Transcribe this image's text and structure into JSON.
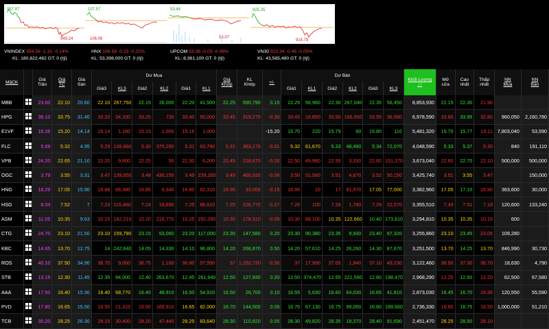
{
  "indices": [
    {
      "name": "VNINDEX",
      "value": "954.58",
      "change": "-1.31",
      "pct": "-0.14%",
      "kl": "KL: 180,822,462",
      "gt": "GT: 0 (tỷ)",
      "max_label": "957.97",
      "min_label": "949.24"
    },
    {
      "name": "HNX",
      "value": "106.58",
      "change": "-0.23",
      "pct": "-0.22%",
      "kl": "KL: 53,398,000",
      "gt": "GT: 0 (tỷ)",
      "max_label": "107.57",
      "min_label": "106.06"
    },
    {
      "name": "UPCOM",
      "value": "53.08",
      "change": "-0.03",
      "pct": "-0.06%",
      "kl": "KL: 8,361,100",
      "gt": "GT: 0 (tỷ)",
      "max_label": "53.44",
      "min_label": "53.07"
    },
    {
      "name": "VN30",
      "value": "922.34",
      "change": "-0.48",
      "pct": "-0.05%",
      "kl": "KL: 43,565,480",
      "gt": "GT: 0 (tỷ)",
      "max_label": "925.25",
      "min_label": "915.79"
    }
  ],
  "headers": {
    "symbol": "MãCK",
    "ceil": [
      "Giá",
      "Trần"
    ],
    "ref": [
      "Giá",
      "TC"
    ],
    "floor": [
      "Giá",
      "Sàn"
    ],
    "buy_group": "Dư Mua",
    "sell_group": "Dư Bán",
    "price1": "Giá1",
    "vol1": "KL1",
    "price2": "Giá2",
    "vol2": "KL2",
    "price3": "Giá3",
    "vol3": "KL3",
    "match_price": [
      "Giá",
      "Khớp"
    ],
    "match_vol": [
      "KL",
      "Khớp"
    ],
    "change": "+/-",
    "total_vol": [
      "Khối Lượng",
      "↓↑"
    ],
    "open": [
      "Mở",
      "cửa"
    ],
    "high": [
      "Cao",
      "nhất"
    ],
    "low": [
      "Thấp",
      "nhất"
    ],
    "nn_buy": [
      "NN",
      "Mua"
    ],
    "nn_sell": [
      "NN",
      "Bán"
    ]
  },
  "rows": [
    [
      "MBB",
      "23.60",
      "22.10",
      "20.60",
      "22.10",
      "267,750",
      "22.15",
      "26,000",
      "22.20",
      "41,500",
      "22.25",
      "590,790",
      "0.15",
      "22.25",
      "56,960",
      "22.30",
      "267,040",
      "22.35",
      "56,450",
      "8,853,930",
      "22.15",
      "22.30",
      "21.90",
      "",
      ""
    ],
    [
      "HPG",
      "36.10",
      "33.75",
      "31.40",
      "33.20",
      "34,330",
      "33.25",
      "730",
      "33.40",
      "50,000",
      "33.45",
      "319,270",
      "-0.30",
      "33.45",
      "16,850",
      "33.50",
      "166,950",
      "33.55",
      "36,580",
      "6,978,590",
      "33.60",
      "33.95",
      "32.80",
      "960,050",
      "2,160,780"
    ],
    [
      "E1VF",
      "16.26",
      "15.20",
      "14.14",
      "15.14",
      "1,180",
      "15.15",
      "1,000",
      "15.16",
      "1,000",
      "",
      "",
      "-15.20",
      "15.70",
      "220",
      "15.79",
      "60",
      "15.80",
      "110",
      "5,481,320",
      "15.70",
      "15.77",
      "15.11",
      "7,803,040",
      "53,590"
    ],
    [
      "FLC",
      "5.69",
      "5.32",
      "4.95",
      "5.29",
      "139,660",
      "5.30",
      "375,290",
      "5.31",
      "63,790",
      "5.31",
      "363,170",
      "-0.01",
      "5.32",
      "61,670",
      "5.33",
      "48,460",
      "5.34",
      "72,070",
      "4,048,590",
      "5.33",
      "5.37",
      "5.30",
      "840",
      "191,110"
    ],
    [
      "VPB",
      "24.20",
      "22.65",
      "21.10",
      "22.20",
      "9,600",
      "22.25",
      "50",
      "22.30",
      "6,200",
      "22.45",
      "228,670",
      "-0.20",
      "22.50",
      "49,960",
      "22.55",
      "3,330",
      "22.60",
      "151,370",
      "3,673,040",
      "22.60",
      "22.70",
      "22.10",
      "500,000",
      "500,000"
    ],
    [
      "OGC",
      "3.79",
      "3.55",
      "3.31",
      "3.47",
      "139,650",
      "3.48",
      "436,150",
      "3.49",
      "239,200",
      "3.49",
      "460,320",
      "-0.06",
      "3.50",
      "51,560",
      "3.51",
      "4,670",
      "3.52",
      "50,150",
      "3,425,740",
      "3.51",
      "3.55",
      "3.47",
      "",
      "150,000"
    ],
    [
      "HNG",
      "18.29",
      "17.05",
      "15.90",
      "16.88",
      "66,380",
      "16.85",
      "6,340",
      "16.90",
      "62,310",
      "16.90",
      "33,000",
      "-0.15",
      "16.95",
      "10",
      "17",
      "81,970",
      "17.05",
      "77,000",
      "3,382,960",
      "17.05",
      "17.10",
      "16.90",
      "363,600",
      "30,000"
    ],
    [
      "HSG",
      "8.04",
      "7.52",
      "7",
      "7.23",
      "115,460",
      "7.24",
      "19,890",
      "7.25",
      "86,910",
      "7.25",
      "226,770",
      "-0.27",
      "7.26",
      "100",
      "7.28",
      "1,780",
      "7.29",
      "22,570",
      "3,355,510",
      "7.43",
      "7.51",
      "7.18",
      "120,600",
      "133,240"
    ],
    [
      "ASM",
      "11.05",
      "10.35",
      "9.63",
      "10.15",
      "182,210",
      "10.20",
      "216,770",
      "10.25",
      "292,090",
      "10.30",
      "178,310",
      "-0.05",
      "10.30",
      "88,100",
      "10.35",
      "122,660",
      "10.40",
      "173,610",
      "3,294,810",
      "10.35",
      "10.35",
      "10.15",
      "600",
      ""
    ],
    [
      "CTG",
      "24.70",
      "23.10",
      "21.50",
      "23.10",
      "159,790",
      "23.15",
      "53,060",
      "23.20",
      "117,000",
      "23.30",
      "147,580",
      "0.20",
      "23.30",
      "90,380",
      "23.35",
      "9,930",
      "23.40",
      "97,320",
      "3,255,860",
      "23.10",
      "23.45",
      "23.05",
      "109,280",
      ""
    ],
    [
      "KBC",
      "14.65",
      "13.70",
      "12.75",
      "14",
      "242,640",
      "14.05",
      "14,330",
      "14.10",
      "96,800",
      "14.20",
      "266,870",
      "0.50",
      "14.20",
      "57,610",
      "14.25",
      "26,260",
      "14.30",
      "87,670",
      "3,251,500",
      "13.70",
      "14.25",
      "13.70",
      "846,990",
      "30,730"
    ],
    [
      "ROS",
      "40.10",
      "37.50",
      "34.90",
      "36.70",
      "9,000",
      "36.75",
      "1,160",
      "36.80",
      "57,950",
      "37",
      "1,252,720",
      "-0.50",
      "37",
      "17,900",
      "37.05",
      "1,840",
      "37.10",
      "49,230",
      "3,122,460",
      "36.50",
      "37.30",
      "36.70",
      "18,630",
      "4,790"
    ],
    [
      "STB",
      "13.15",
      "12.30",
      "11.45",
      "12.35",
      "94,000",
      "12.40",
      "263,670",
      "12.45",
      "261,940",
      "12.50",
      "127,930",
      "0.20",
      "12.50",
      "374,470",
      "12.55",
      "221,590",
      "12.60",
      "198,470",
      "2,968,290",
      "12.25",
      "12.50",
      "12.20",
      "62,500",
      "67,580"
    ],
    [
      "AAA",
      "17.50",
      "16.40",
      "15.30",
      "16.40",
      "68,770",
      "16.45",
      "48,910",
      "16.50",
      "54,910",
      "16.50",
      "26,700",
      "0.10",
      "16.55",
      "5,630",
      "16.60",
      "64,030",
      "16.65",
      "41,810",
      "2,873,030",
      "16.45",
      "16.70",
      "16.35",
      "120,550",
      "55,590"
    ],
    [
      "PVD",
      "17.80",
      "16.65",
      "15.50",
      "16.55",
      "21,310",
      "16.60",
      "169,910",
      "16.65",
      "82,000",
      "16.70",
      "144,500",
      "0.05",
      "16.70",
      "67,130",
      "16.75",
      "99,000",
      "16.80",
      "189,660",
      "2,736,330",
      "16.60",
      "16.75",
      "16.50",
      "1,000,000",
      "51,210"
    ],
    [
      "TCB",
      "30.20",
      "28.25",
      "26.30",
      "28.15",
      "30,400",
      "28.20",
      "47,440",
      "28.25",
      "83,640",
      "28.30",
      "110,820",
      "0.05",
      "28.30",
      "49,820",
      "28.35",
      "18,370",
      "28.40",
      "91,690",
      "2,451,470",
      "28.25",
      "28.50",
      "28.10",
      "",
      ""
    ]
  ],
  "colors": {
    "ceiling": "#ff3cff",
    "reference": "#ffd800",
    "floor": "#37c8ff",
    "up": "#2fe82f",
    "down": "#ff3030",
    "total_volume_header": "#1fbf1f"
  },
  "icons": {
    "row_action": "grid-icon"
  }
}
